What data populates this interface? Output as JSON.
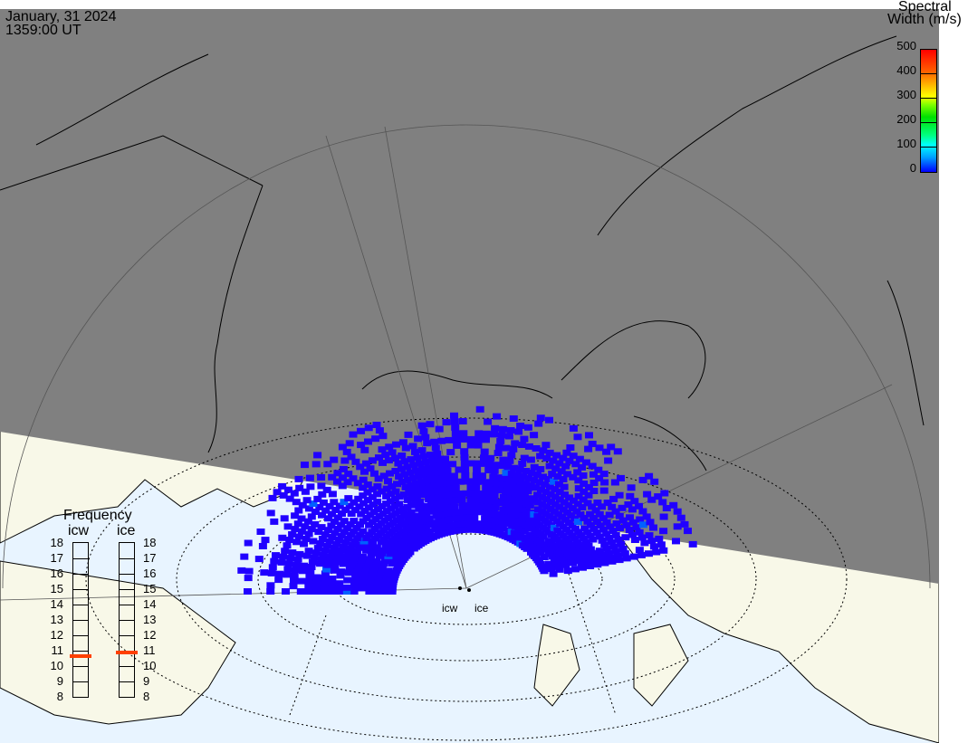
{
  "header": {
    "date": "January, 31 2024",
    "time": "1359:00 UT"
  },
  "colorbar": {
    "title_line1": "Spectral",
    "title_line2": "Width (m/s)",
    "ticks": [
      "500",
      "400",
      "300",
      "200",
      "100",
      "0"
    ],
    "range": [
      0,
      500
    ],
    "colors": [
      "#0000ff",
      "#00a0ff",
      "#00ffff",
      "#00ff80",
      "#00e000",
      "#80ff00",
      "#ffff00",
      "#ffb000",
      "#ff6000",
      "#ff0000"
    ]
  },
  "frequency": {
    "title": "Frequency",
    "radars": [
      {
        "name": "icw",
        "value_mhz": 10.6
      },
      {
        "name": "ice",
        "value_mhz": 10.8
      }
    ],
    "ticks": [
      "18",
      "17",
      "16",
      "15",
      "14",
      "13",
      "12",
      "11",
      "10",
      "9",
      "8"
    ],
    "range": [
      8,
      18
    ],
    "marker_color": "#ff4000"
  },
  "radar_labels": [
    "icw",
    "ice"
  ],
  "colors": {
    "night": "#808080",
    "land_day": "#f8f8e8",
    "ocean_day": "#e8f4ff",
    "scatter": "#2000ff"
  }
}
